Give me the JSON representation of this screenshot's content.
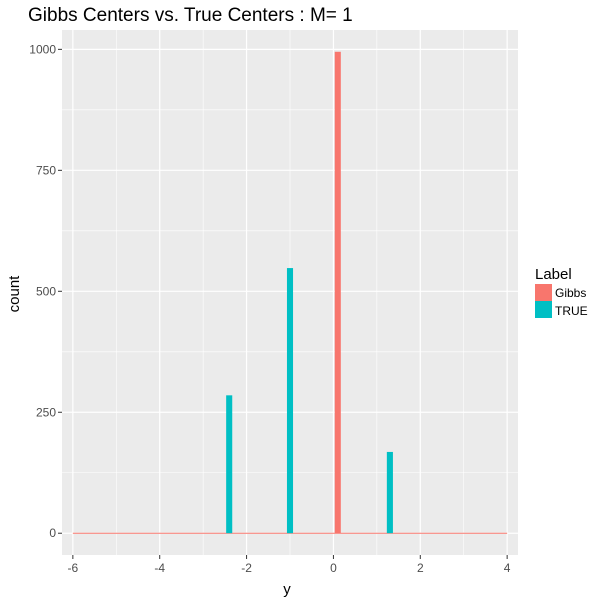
{
  "chart_data": {
    "type": "bar",
    "title": "Gibbs Centers vs. True Centers : M= 1",
    "xlabel": "y",
    "ylabel": "count",
    "xlim": [
      -6.25,
      4.25
    ],
    "ylim": [
      -45,
      1040
    ],
    "x_ticks": [
      -6,
      -4,
      -2,
      0,
      2,
      4
    ],
    "x_tick_labels": [
      "-6",
      "-4",
      "-2",
      "0",
      "2",
      "4"
    ],
    "y_ticks": [
      0,
      250,
      500,
      750,
      1000
    ],
    "y_tick_labels": [
      "0",
      "250",
      "500",
      "750",
      "1000"
    ],
    "bar_width": 0.14,
    "grid": true,
    "legend": {
      "title": "Label",
      "position": "right"
    },
    "series": [
      {
        "name": "Gibbs",
        "color": "#F8766D",
        "baseline_x": [
          -6,
          4
        ],
        "points": [
          {
            "x": 0.1,
            "count": 995
          }
        ]
      },
      {
        "name": "TRUE",
        "color": "#00BFC4",
        "points": [
          {
            "x": -2.4,
            "count": 285
          },
          {
            "x": -1.0,
            "count": 548
          },
          {
            "x": 1.3,
            "count": 168
          }
        ]
      }
    ]
  }
}
